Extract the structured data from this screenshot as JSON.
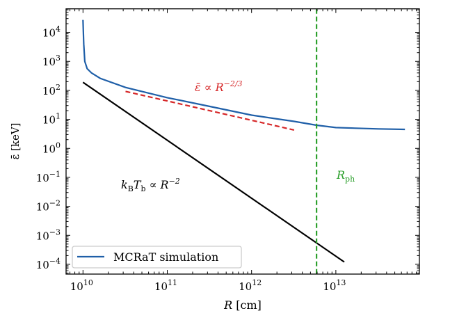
{
  "chart_data": {
    "type": "line",
    "xlabel": "R [cm]",
    "ylabel": "ε̄ [keV]",
    "xscale": "log",
    "yscale": "log",
    "xlim": [
      6300000000.0,
      98000000000000.0
    ],
    "ylim": [
      4.6e-05,
      65000.0
    ],
    "grid": false,
    "legend_position": "lower-left",
    "x_ticks": [
      {
        "value": 10000000000.0,
        "base": "10",
        "exp": "10"
      },
      {
        "value": 100000000000.0,
        "base": "10",
        "exp": "11"
      },
      {
        "value": 1000000000000.0,
        "base": "10",
        "exp": "12"
      },
      {
        "value": 10000000000000.0,
        "base": "10",
        "exp": "13"
      }
    ],
    "y_ticks": [
      {
        "value": 10000.0,
        "base": "10",
        "exp": "4"
      },
      {
        "value": 1000.0,
        "base": "10",
        "exp": "3"
      },
      {
        "value": 100.0,
        "base": "10",
        "exp": "2"
      },
      {
        "value": 10.0,
        "base": "10",
        "exp": "1"
      },
      {
        "value": 1.0,
        "base": "10",
        "exp": "0"
      },
      {
        "value": 0.1,
        "base": "10",
        "exp": "−1"
      },
      {
        "value": 0.01,
        "base": "10",
        "exp": "−2"
      },
      {
        "value": 0.001,
        "base": "10",
        "exp": "−3"
      },
      {
        "value": 0.0001,
        "base": "10",
        "exp": "−4"
      }
    ],
    "series": [
      {
        "name": "MCRaT simulation",
        "color": "#1f5fa8",
        "style": "solid",
        "x": [
          10000000000.0,
          10200000000.0,
          10500000000.0,
          11200000000.0,
          12600000000.0,
          16000000000.0,
          32000000000.0,
          100000000000.0,
          320000000000.0,
          1000000000000.0,
          3200000000000.0,
          5900000000000.0,
          10000000000000.0,
          32000000000000.0,
          66000000000000.0
        ],
        "y": [
          27000,
          4000,
          1000,
          560,
          400,
          260,
          126,
          56,
          28,
          14,
          8.5,
          6.3,
          5.2,
          4.7,
          4.5
        ]
      },
      {
        "label": "k_B T_b ∝ R^−2",
        "color": "#000000",
        "style": "solid",
        "x": [
          10000000000.0,
          12600000000000.0
        ],
        "y": [
          190,
          0.00012
        ]
      },
      {
        "label": "ε̄ ∝ R^−2/3",
        "color": "#d62728",
        "style": "dashed",
        "x": [
          32000000000.0,
          3200000000000.0
        ],
        "y": [
          92,
          4.3
        ]
      }
    ],
    "vlines": [
      {
        "x": 5900000000000.0,
        "color": "#2ca02c",
        "style": "dashed",
        "label": "R_ph"
      }
    ],
    "annotations": {
      "red": {
        "main": "ε̄ ∝ R",
        "sup": "−2/3"
      },
      "black": {
        "k": "k",
        "ksub": "B",
        "T": "T",
        "Tsub": "b",
        "rest": " ∝ R",
        "sup": "−2"
      },
      "green": {
        "main": "R",
        "sub": "ph"
      }
    },
    "legend": {
      "entry": "MCRaT simulation"
    }
  }
}
